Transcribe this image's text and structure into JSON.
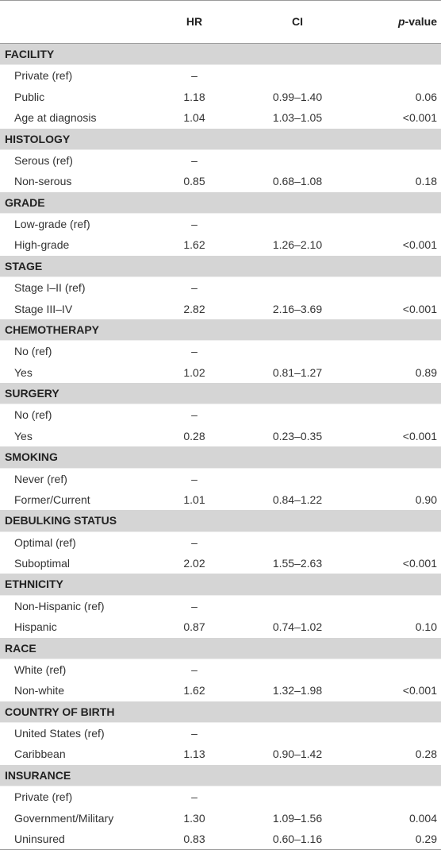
{
  "header": {
    "hr": "HR",
    "ci": "CI",
    "p": "p-value"
  },
  "sections": [
    {
      "title": "FACILITY",
      "rows": [
        [
          "Private (ref)",
          "–"
        ],
        [
          "Public",
          "1.18",
          "0.99–1.40",
          "0.06"
        ],
        [
          "Age at diagnosis",
          "1.04",
          "1.03–1.05",
          "<0.001"
        ]
      ]
    },
    {
      "title": "HISTOLOGY",
      "rows": [
        [
          "Serous (ref)",
          "–"
        ],
        [
          "Non-serous",
          "0.85",
          "0.68–1.08",
          "0.18"
        ]
      ]
    },
    {
      "title": "GRADE",
      "rows": [
        [
          "Low-grade (ref)",
          "–"
        ],
        [
          "High-grade",
          "1.62",
          "1.26–2.10",
          "<0.001"
        ]
      ]
    },
    {
      "title": "STAGE",
      "rows": [
        [
          "Stage I–II (ref)",
          "–"
        ],
        [
          "Stage III–IV",
          "2.82",
          "2.16–3.69",
          "<0.001"
        ]
      ]
    },
    {
      "title": "CHEMOTHERAPY",
      "rows": [
        [
          "No (ref)",
          "–"
        ],
        [
          "Yes",
          "1.02",
          "0.81–1.27",
          "0.89"
        ]
      ]
    },
    {
      "title": "SURGERY",
      "rows": [
        [
          "No (ref)",
          "–"
        ],
        [
          "Yes",
          "0.28",
          "0.23–0.35",
          "<0.001"
        ]
      ]
    },
    {
      "title": "SMOKING",
      "rows": [
        [
          "Never (ref)",
          "–"
        ],
        [
          "Former/Current",
          "1.01",
          "0.84–1.22",
          "0.90"
        ]
      ]
    },
    {
      "title": "DEBULKING STATUS",
      "rows": [
        [
          "Optimal (ref)",
          "–"
        ],
        [
          "Suboptimal",
          "2.02",
          "1.55–2.63",
          "<0.001"
        ]
      ]
    },
    {
      "title": "ETHNICITY",
      "rows": [
        [
          "Non-Hispanic (ref)",
          "–"
        ],
        [
          "Hispanic",
          "0.87",
          "0.74–1.02",
          "0.10"
        ]
      ]
    },
    {
      "title": "RACE",
      "rows": [
        [
          "White (ref)",
          "–"
        ],
        [
          "Non-white",
          "1.62",
          "1.32–1.98",
          "<0.001"
        ]
      ]
    },
    {
      "title": "COUNTRY OF BIRTH",
      "rows": [
        [
          "United States (ref)",
          "–"
        ],
        [
          "Caribbean",
          "1.13",
          "0.90–1.42",
          "0.28"
        ]
      ]
    },
    {
      "title": "INSURANCE",
      "rows": [
        [
          "Private (ref)",
          "–"
        ],
        [
          "Government/Military",
          "1.30",
          "1.09–1.56",
          "0.004"
        ],
        [
          "Uninsured",
          "0.83",
          "0.60–1.16",
          "0.29"
        ]
      ]
    }
  ]
}
